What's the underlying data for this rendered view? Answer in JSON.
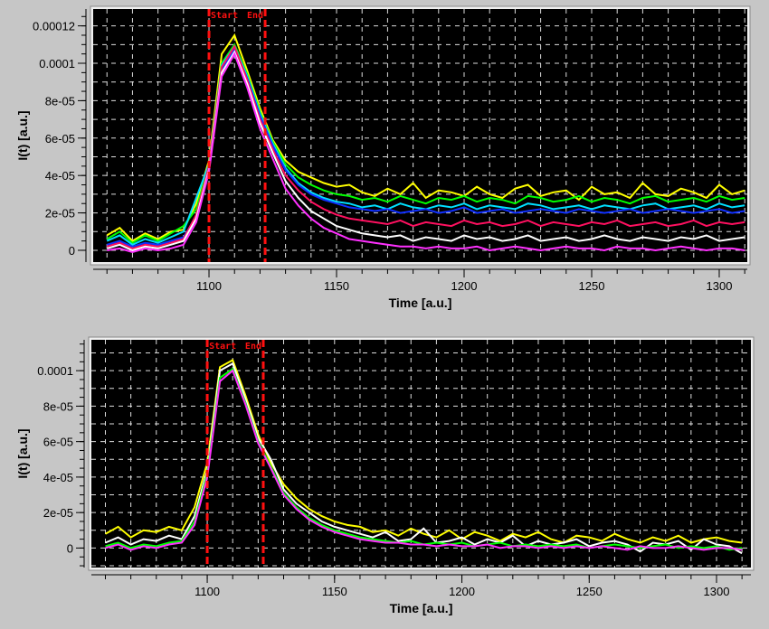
{
  "chart_data": [
    {
      "type": "line",
      "xlabel": "Time [a.u.]",
      "ylabel": "I(t) [a.u.]",
      "xlim": [
        1054.6,
        1311
      ],
      "ylim": [
        -6.3e-06,
        0.000129
      ],
      "xticks": [
        1100,
        1150,
        1200,
        1250,
        1300
      ],
      "xtick_labels": [
        "1100",
        "1150",
        "1200",
        "1250",
        "1300"
      ],
      "yticks": [
        0,
        2e-05,
        4e-05,
        6e-05,
        8e-05,
        0.0001,
        0.00012
      ],
      "ytick_labels": [
        "0",
        "2e-05",
        "4e-05",
        "6e-05",
        "8e-05",
        "0.0001",
        "0.00012"
      ],
      "grid": true,
      "background": "#000000",
      "markers": [
        {
          "label": "Start",
          "x": 1100,
          "color": "#ff1010"
        },
        {
          "label": "End",
          "x": 1122,
          "color": "#ff1010"
        }
      ],
      "x": [
        1060,
        1065,
        1070,
        1075,
        1080,
        1085,
        1090,
        1095,
        1100,
        1105,
        1110,
        1115,
        1120,
        1125,
        1130,
        1135,
        1140,
        1145,
        1150,
        1155,
        1160,
        1165,
        1170,
        1175,
        1180,
        1185,
        1190,
        1195,
        1200,
        1205,
        1210,
        1215,
        1220,
        1225,
        1230,
        1235,
        1240,
        1245,
        1250,
        1255,
        1260,
        1265,
        1270,
        1275,
        1280,
        1285,
        1290,
        1295,
        1300,
        1305,
        1310
      ],
      "series": [
        {
          "color": "#ffff00",
          "values": [
            8e-06,
            1.2e-05,
            5e-06,
            9e-06,
            6e-06,
            1e-05,
            1.1e-05,
            2.5e-05,
            4.8e-05,
            0.000105,
            0.000115,
            9.6e-05,
            7.6e-05,
            5.9e-05,
            4.8e-05,
            4.2e-05,
            3.9e-05,
            3.6e-05,
            3.4e-05,
            3.5e-05,
            3.1e-05,
            2.9e-05,
            3.3e-05,
            3e-05,
            3.6e-05,
            2.8e-05,
            3.2e-05,
            3.1e-05,
            2.9e-05,
            3.4e-05,
            3e-05,
            2.8e-05,
            3.3e-05,
            3.5e-05,
            2.9e-05,
            3.1e-05,
            3.2e-05,
            2.7e-05,
            3.4e-05,
            3e-05,
            3.1e-05,
            2.8e-05,
            3.6e-05,
            3e-05,
            2.9e-05,
            3.3e-05,
            3.1e-05,
            2.8e-05,
            3.5e-05,
            3e-05,
            3.2e-05
          ]
        },
        {
          "color": "#00ff00",
          "values": [
            6e-06,
            1e-05,
            4e-06,
            8e-06,
            5e-06,
            9e-06,
            1.3e-05,
            2.2e-05,
            4.6e-05,
            0.0001,
            0.00011,
            9.4e-05,
            7.4e-05,
            5.8e-05,
            4.6e-05,
            3.9e-05,
            3.5e-05,
            3.2e-05,
            3e-05,
            2.9e-05,
            2.7e-05,
            2.8e-05,
            2.6e-05,
            2.9e-05,
            2.7e-05,
            2.5e-05,
            2.8e-05,
            2.7e-05,
            2.9e-05,
            2.6e-05,
            2.8e-05,
            2.7e-05,
            2.5e-05,
            2.9e-05,
            2.8e-05,
            2.6e-05,
            2.7e-05,
            2.9e-05,
            2.6e-05,
            2.8e-05,
            2.7e-05,
            2.5e-05,
            2.8e-05,
            2.9e-05,
            2.6e-05,
            2.7e-05,
            2.8e-05,
            2.6e-05,
            2.9e-05,
            2.7e-05,
            2.8e-05
          ]
        },
        {
          "color": "#00e0ff",
          "values": [
            5e-06,
            8e-06,
            3e-06,
            6e-06,
            4e-06,
            7e-06,
            1e-05,
            2.8e-05,
            4.6e-05,
            9.9e-05,
            0.000109,
            9.3e-05,
            7.3e-05,
            5.7e-05,
            4.4e-05,
            3.6e-05,
            3.1e-05,
            2.8e-05,
            2.6e-05,
            2.5e-05,
            2.3e-05,
            2.4e-05,
            2.2e-05,
            2.5e-05,
            2.3e-05,
            2.2e-05,
            2.4e-05,
            2.3e-05,
            2.5e-05,
            2.2e-05,
            2.4e-05,
            2.3e-05,
            2.2e-05,
            2.5e-05,
            2.4e-05,
            2.2e-05,
            2.3e-05,
            2.4e-05,
            2.2e-05,
            2.4e-05,
            2.3e-05,
            2.2e-05,
            2.4e-05,
            2.5e-05,
            2.2e-05,
            2.3e-05,
            2.4e-05,
            2.2e-05,
            2.5e-05,
            2.3e-05,
            2.4e-05
          ]
        },
        {
          "color": "#1030ff",
          "values": [
            3e-06,
            5e-06,
            2e-06,
            4e-06,
            3e-06,
            5e-06,
            7e-06,
            1.8e-05,
            4.4e-05,
            9.6e-05,
            0.000108,
            9.2e-05,
            7.2e-05,
            5.6e-05,
            4.3e-05,
            3.5e-05,
            3e-05,
            2.7e-05,
            2.5e-05,
            2.3e-05,
            2.2e-05,
            2.1e-05,
            2.2e-05,
            2e-05,
            2.1e-05,
            2.2e-05,
            2e-05,
            2.1e-05,
            2.3e-05,
            2e-05,
            2.1e-05,
            2.2e-05,
            2e-05,
            2.1e-05,
            2.2e-05,
            2.1e-05,
            2e-05,
            2.2e-05,
            2.1e-05,
            2e-05,
            2.1e-05,
            2.2e-05,
            2e-05,
            2.1e-05,
            2.2e-05,
            2.1e-05,
            2e-05,
            2.1e-05,
            2.2e-05,
            2e-05,
            2.1e-05
          ]
        },
        {
          "color": "#ff1060",
          "values": [
            2e-06,
            4e-06,
            1e-06,
            3e-06,
            2e-06,
            4e-06,
            6e-06,
            1.9e-05,
            4.5e-05,
            9.8e-05,
            0.000109,
            9.1e-05,
            7e-05,
            5.4e-05,
            4e-05,
            3.2e-05,
            2.6e-05,
            2.2e-05,
            1.9e-05,
            1.7e-05,
            1.6e-05,
            1.5e-05,
            1.4e-05,
            1.6e-05,
            1.3e-05,
            1.5e-05,
            1.4e-05,
            1.3e-05,
            1.6e-05,
            1.4e-05,
            1.5e-05,
            1.3e-05,
            1.4e-05,
            1.6e-05,
            1.3e-05,
            1.5e-05,
            1.4e-05,
            1.3e-05,
            1.5e-05,
            1.4e-05,
            1.6e-05,
            1.3e-05,
            1.4e-05,
            1.5e-05,
            1.3e-05,
            1.4e-05,
            1.6e-05,
            1.3e-05,
            1.5e-05,
            1.4e-05,
            1.5e-05
          ]
        },
        {
          "color": "#ffffff",
          "values": [
            1e-06,
            3e-06,
            0.0,
            2e-06,
            1e-06,
            3e-06,
            5e-06,
            1.7e-05,
            4.3e-05,
            9.5e-05,
            0.000106,
            8.9e-05,
            6.8e-05,
            5.2e-05,
            3.7e-05,
            2.8e-05,
            2.1e-05,
            1.7e-05,
            1.3e-05,
            1.1e-05,
            9e-06,
            8e-06,
            7e-06,
            8e-06,
            5e-06,
            7e-06,
            6e-06,
            5e-06,
            8e-06,
            6e-06,
            7e-06,
            5e-06,
            6e-06,
            8e-06,
            5e-06,
            6e-06,
            7e-06,
            5e-06,
            6e-06,
            8e-06,
            6e-06,
            5e-06,
            7e-06,
            6e-06,
            5e-06,
            7e-06,
            6e-06,
            8e-06,
            5e-06,
            6e-06,
            7e-06
          ]
        },
        {
          "color": "#ff30ff",
          "values": [
            0.0,
            1e-06,
            -1e-06,
            1e-06,
            0.0,
            1e-06,
            3e-06,
            1.5e-05,
            4.2e-05,
            9.3e-05,
            0.000105,
            8.7e-05,
            6.5e-05,
            4.9e-05,
            3.3e-05,
            2.4e-05,
            1.7e-05,
            1.2e-05,
            9e-06,
            6e-06,
            5e-06,
            4e-06,
            3e-06,
            2e-06,
            2e-06,
            1e-06,
            2e-06,
            1e-06,
            1e-06,
            2e-06,
            0.0,
            1e-06,
            2e-06,
            1e-06,
            0.0,
            1e-06,
            2e-06,
            1e-06,
            1e-06,
            0.0,
            2e-06,
            1e-06,
            1e-06,
            0.0,
            1e-06,
            2e-06,
            1e-06,
            0.0,
            1e-06,
            1e-06,
            0.0
          ]
        }
      ]
    },
    {
      "type": "line",
      "xlabel": "Time [a.u.]",
      "ylabel": "I(t) [a.u.]",
      "xlim": [
        1054.5,
        1313.5
      ],
      "ylim": [
        -1.1e-05,
        0.0001174
      ],
      "xticks": [
        1100,
        1150,
        1200,
        1250,
        1300
      ],
      "xtick_labels": [
        "1100",
        "1150",
        "1200",
        "1250",
        "1300"
      ],
      "yticks": [
        0,
        2e-05,
        4e-05,
        6e-05,
        8e-05,
        0.0001
      ],
      "ytick_labels": [
        "0",
        "2e-05",
        "4e-05",
        "6e-05",
        "8e-05",
        "0.0001"
      ],
      "grid": true,
      "background": "#000000",
      "markers": [
        {
          "label": "Start",
          "x": 1100,
          "color": "#ff1010"
        },
        {
          "label": "End",
          "x": 1122,
          "color": "#ff1010"
        }
      ],
      "x": [
        1060,
        1065,
        1070,
        1075,
        1080,
        1085,
        1090,
        1095,
        1100,
        1105,
        1110,
        1115,
        1120,
        1125,
        1130,
        1135,
        1140,
        1145,
        1150,
        1155,
        1160,
        1165,
        1170,
        1175,
        1180,
        1185,
        1190,
        1195,
        1200,
        1205,
        1210,
        1215,
        1220,
        1225,
        1230,
        1235,
        1240,
        1245,
        1250,
        1255,
        1260,
        1265,
        1270,
        1275,
        1280,
        1285,
        1290,
        1295,
        1300,
        1305,
        1310
      ],
      "series": [
        {
          "color": "#ffff00",
          "values": [
            8e-06,
            1.2e-05,
            6e-06,
            1e-05,
            9e-06,
            1.2e-05,
            1e-05,
            2.3e-05,
            4.8e-05,
            0.000102,
            0.000106,
            8.6e-05,
            6.4e-05,
            4.8e-05,
            3.6e-05,
            2.8e-05,
            2.2e-05,
            1.8e-05,
            1.5e-05,
            1.3e-05,
            1.2e-05,
            9e-06,
            1e-05,
            7e-06,
            1.1e-05,
            8e-06,
            6e-06,
            1e-05,
            5e-06,
            9e-06,
            7e-06,
            4e-06,
            8e-06,
            6e-06,
            9e-06,
            5e-06,
            3e-06,
            7e-06,
            6e-06,
            4e-06,
            8e-06,
            5e-06,
            3e-06,
            6e-06,
            4e-06,
            7e-06,
            3e-06,
            5e-06,
            6e-06,
            4e-06,
            3e-06
          ]
        },
        {
          "color": "#ffffff",
          "values": [
            3e-06,
            6e-06,
            2e-06,
            5e-06,
            4e-06,
            7e-06,
            5e-06,
            1.8e-05,
            4.4e-05,
            0.0001,
            0.000104,
            8.4e-05,
            6.2e-05,
            5e-05,
            3.3e-05,
            2.5e-05,
            2e-05,
            1.5e-05,
            1.2e-05,
            1e-05,
            8e-06,
            6e-06,
            9e-06,
            4e-06,
            5e-06,
            1.1e-05,
            3e-06,
            4e-06,
            6e-06,
            2e-06,
            5e-06,
            3e-06,
            7e-06,
            1e-06,
            4e-06,
            2e-06,
            3e-06,
            5e-06,
            1e-06,
            3e-06,
            4e-06,
            2e-06,
            -2e-06,
            3e-06,
            2e-06,
            4e-06,
            -1e-06,
            5e-06,
            2e-06,
            1e-06,
            -3e-06
          ]
        },
        {
          "color": "#00ff00",
          "values": [
            1e-06,
            3e-06,
            0.0,
            2e-06,
            1e-06,
            3e-06,
            4e-06,
            1.5e-05,
            4.2e-05,
            9.6e-05,
            0.000101,
            8.2e-05,
            6e-05,
            4.6e-05,
            3.1e-05,
            2.3e-05,
            1.7e-05,
            1.3e-05,
            1e-05,
            8e-06,
            6e-06,
            5e-06,
            4e-06,
            3e-06,
            4e-06,
            2e-06,
            3e-06,
            2e-06,
            3e-06,
            1e-06,
            2e-06,
            3e-06,
            1e-06,
            2e-06,
            1e-06,
            2e-06,
            1e-06,
            2e-06,
            0.0,
            1e-06,
            2e-06,
            1e-06,
            0.0,
            1e-06,
            2e-06,
            0.0,
            1e-06,
            0.0,
            1e-06,
            -1e-06,
            0.0
          ]
        },
        {
          "color": "#ff30ff",
          "values": [
            0.0,
            2e-06,
            -1e-06,
            1e-06,
            0.0,
            2e-06,
            3e-06,
            1.3e-05,
            4e-05,
            9.4e-05,
            0.0001,
            8.1e-05,
            5.9e-05,
            4.5e-05,
            3e-05,
            2.2e-05,
            1.6e-05,
            1.2e-05,
            9e-06,
            7e-06,
            5e-06,
            4e-06,
            3e-06,
            3e-06,
            2e-06,
            2e-06,
            1e-06,
            2e-06,
            1e-06,
            1e-06,
            2e-06,
            0.0,
            1e-06,
            1e-06,
            0.0,
            1e-06,
            0.0,
            1e-06,
            0.0,
            1e-06,
            0.0,
            -1e-06,
            1e-06,
            0.0,
            0.0,
            1e-06,
            0.0,
            -1e-06,
            0.0,
            0.0,
            -1e-06
          ]
        }
      ]
    }
  ]
}
